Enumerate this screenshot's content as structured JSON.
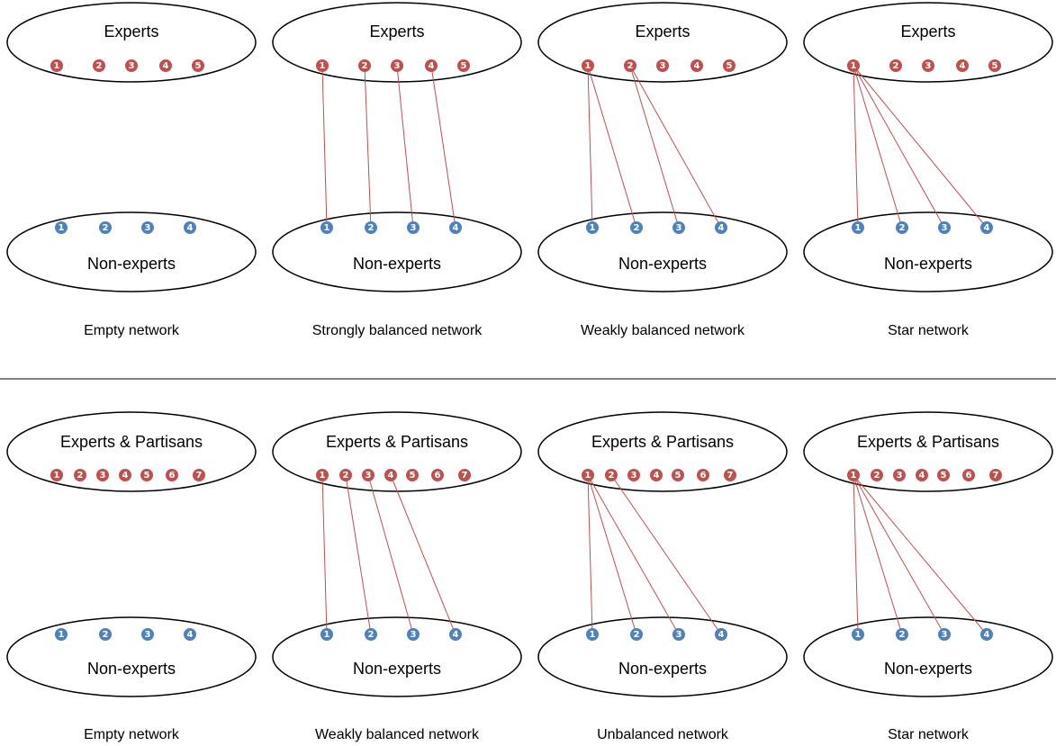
{
  "colors": {
    "expert": "#c0504d",
    "nonexpert": "#4f81bd",
    "edge": "#c0504d"
  },
  "rows": [
    {
      "panels": [
        {
          "top_label": "Experts",
          "bottom_label": "Non-experts",
          "caption": "Empty network",
          "top_nodes": [
            "1",
            "2",
            "3",
            "4",
            "5"
          ],
          "bottom_nodes": [
            "1",
            "2",
            "3",
            "4"
          ],
          "edges": []
        },
        {
          "top_label": "Experts",
          "bottom_label": "Non-experts",
          "caption": "Strongly balanced network",
          "top_nodes": [
            "1",
            "2",
            "3",
            "4",
            "5"
          ],
          "bottom_nodes": [
            "1",
            "2",
            "3",
            "4"
          ],
          "edges": [
            [
              1,
              1
            ],
            [
              2,
              2
            ],
            [
              3,
              3
            ],
            [
              4,
              4
            ]
          ]
        },
        {
          "top_label": "Experts",
          "bottom_label": "Non-experts",
          "caption": "Weakly balanced network",
          "top_nodes": [
            "1",
            "2",
            "3",
            "4",
            "5"
          ],
          "bottom_nodes": [
            "1",
            "2",
            "3",
            "4"
          ],
          "edges": [
            [
              1,
              1
            ],
            [
              1,
              2
            ],
            [
              2,
              3
            ],
            [
              2,
              4
            ]
          ]
        },
        {
          "top_label": "Experts",
          "bottom_label": "Non-experts",
          "caption": "Star network",
          "top_nodes": [
            "1",
            "2",
            "3",
            "4",
            "5"
          ],
          "bottom_nodes": [
            "1",
            "2",
            "3",
            "4"
          ],
          "edges": [
            [
              1,
              1
            ],
            [
              1,
              2
            ],
            [
              1,
              3
            ],
            [
              1,
              4
            ]
          ]
        }
      ]
    },
    {
      "panels": [
        {
          "top_label": "Experts & Partisans",
          "bottom_label": "Non-experts",
          "caption": "Empty network",
          "top_nodes": [
            "1",
            "2",
            "3",
            "4",
            "5",
            "6",
            "7"
          ],
          "bottom_nodes": [
            "1",
            "2",
            "3",
            "4"
          ],
          "edges": []
        },
        {
          "top_label": "Experts & Partisans",
          "bottom_label": "Non-experts",
          "caption": "Weakly balanced network",
          "top_nodes": [
            "1",
            "2",
            "3",
            "4",
            "5",
            "6",
            "7"
          ],
          "bottom_nodes": [
            "1",
            "2",
            "3",
            "4"
          ],
          "edges": [
            [
              1,
              1
            ],
            [
              2,
              2
            ],
            [
              3,
              3
            ],
            [
              4,
              4
            ]
          ]
        },
        {
          "top_label": "Experts & Partisans",
          "bottom_label": "Non-experts",
          "caption": "Unbalanced network",
          "top_nodes": [
            "1",
            "2",
            "3",
            "4",
            "5",
            "6",
            "7"
          ],
          "bottom_nodes": [
            "1",
            "2",
            "3",
            "4"
          ],
          "edges": [
            [
              1,
              1
            ],
            [
              1,
              2
            ],
            [
              1,
              3
            ],
            [
              2,
              4
            ]
          ]
        },
        {
          "top_label": "Experts & Partisans",
          "bottom_label": "Non-experts",
          "caption": "Star network",
          "top_nodes": [
            "1",
            "2",
            "3",
            "4",
            "5",
            "6",
            "7"
          ],
          "bottom_nodes": [
            "1",
            "2",
            "3",
            "4"
          ],
          "edges": [
            [
              1,
              1
            ],
            [
              1,
              2
            ],
            [
              1,
              3
            ],
            [
              1,
              4
            ]
          ]
        }
      ]
    }
  ]
}
